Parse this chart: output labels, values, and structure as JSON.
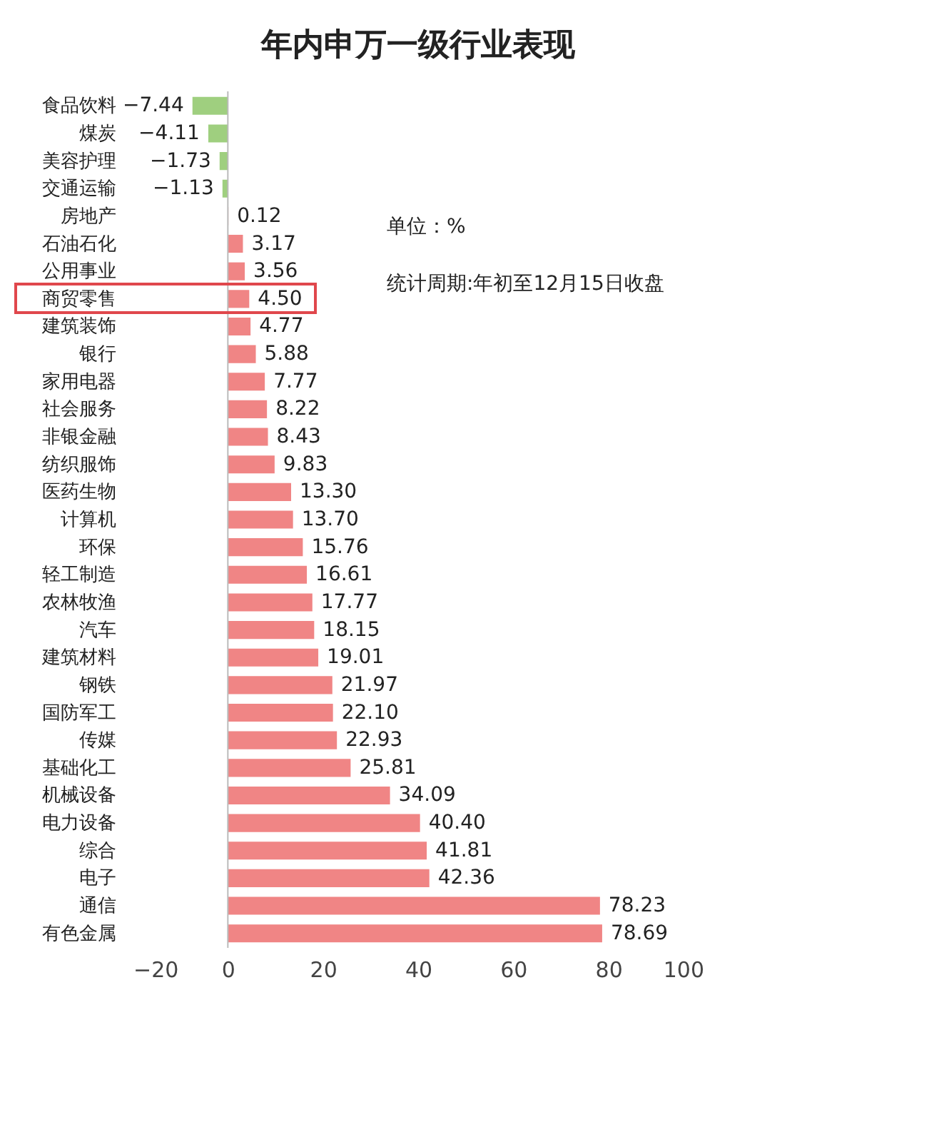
{
  "chart_data": {
    "type": "bar",
    "orientation": "horizontal",
    "title": "年内申万一级行业表现",
    "categories": [
      "食品饮料",
      "煤炭",
      "美容护理",
      "交通运输",
      "房地产",
      "石油石化",
      "公用事业",
      "商贸零售",
      "建筑装饰",
      "银行",
      "家用电器",
      "社会服务",
      "非银金融",
      "纺织服饰",
      "医药生物",
      "计算机",
      "环保",
      "轻工制造",
      "农林牧渔",
      "汽车",
      "建筑材料",
      "钢铁",
      "国防军工",
      "传媒",
      "基础化工",
      "机械设备",
      "电力设备",
      "综合",
      "电子",
      "通信",
      "有色金属"
    ],
    "values": [
      -7.44,
      -4.11,
      -1.73,
      -1.13,
      0.12,
      3.17,
      3.56,
      4.5,
      4.77,
      5.88,
      7.77,
      8.22,
      8.43,
      9.83,
      13.3,
      13.7,
      15.76,
      16.61,
      17.77,
      18.15,
      19.01,
      21.97,
      22.1,
      22.93,
      25.81,
      34.09,
      40.4,
      41.81,
      42.36,
      78.23,
      78.69
    ],
    "value_labels": [
      "−7.44",
      "−4.11",
      "−1.73",
      "−1.13",
      "0.12",
      "3.17",
      "3.56",
      "4.50",
      "4.77",
      "5.88",
      "7.77",
      "8.22",
      "8.43",
      "9.83",
      "13.30",
      "13.70",
      "15.76",
      "16.61",
      "17.77",
      "18.15",
      "19.01",
      "21.97",
      "22.10",
      "22.93",
      "25.81",
      "34.09",
      "40.40",
      "41.81",
      "42.36",
      "78.23",
      "78.69"
    ],
    "colors": [
      "#9fcf7f",
      "#9fcf7f",
      "#9fcf7f",
      "#9fcf7f",
      "#f08585",
      "#f08585",
      "#f08585",
      "#f08585",
      "#f08585",
      "#f08585",
      "#f08585",
      "#f08585",
      "#f08585",
      "#f08585",
      "#f08585",
      "#f08585",
      "#f08585",
      "#f08585",
      "#f08585",
      "#f08585",
      "#f08585",
      "#f08585",
      "#f08585",
      "#f08585",
      "#f08585",
      "#f08585",
      "#f08585",
      "#f08585",
      "#f08585",
      "#f08585",
      "#f08585"
    ],
    "xlim": [
      -20,
      100
    ],
    "xticks": [
      -20,
      0,
      20,
      40,
      60,
      80,
      100
    ],
    "grid": false,
    "ref_lines": [
      {
        "axis": "x",
        "value": 0,
        "color": "#bbbbbb"
      }
    ],
    "annotations": [
      "单位：%",
      "统计周期:年初至12月15日收盘"
    ]
  }
}
